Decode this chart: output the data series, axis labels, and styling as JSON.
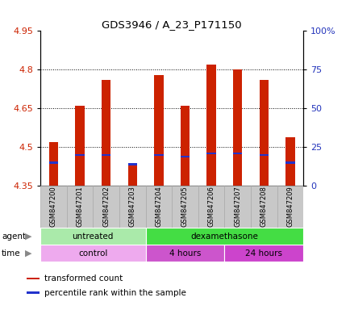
{
  "title": "GDS3946 / A_23_P171150",
  "samples": [
    "GSM847200",
    "GSM847201",
    "GSM847202",
    "GSM847203",
    "GSM847204",
    "GSM847205",
    "GSM847206",
    "GSM847207",
    "GSM847208",
    "GSM847209"
  ],
  "bar_values": [
    4.52,
    4.66,
    4.76,
    4.44,
    4.78,
    4.66,
    4.82,
    4.8,
    4.76,
    4.54
  ],
  "bar_bottom": 4.35,
  "percentile_values": [
    15,
    20,
    20,
    14,
    20,
    19,
    21,
    21,
    20,
    15
  ],
  "left_yticks": [
    4.35,
    4.5,
    4.65,
    4.8,
    4.95
  ],
  "right_yticks": [
    0,
    25,
    50,
    75,
    100
  ],
  "left_ylim": [
    4.35,
    4.95
  ],
  "right_ylim": [
    0,
    100
  ],
  "bar_color": "#cc2200",
  "percentile_color": "#2233cc",
  "bar_width": 0.35,
  "agent_groups": [
    {
      "label": "untreated",
      "start": 0,
      "end": 4,
      "color": "#aaeaaa"
    },
    {
      "label": "dexamethasone",
      "start": 4,
      "end": 10,
      "color": "#44dd44"
    }
  ],
  "time_groups": [
    {
      "label": "control",
      "start": 0,
      "end": 4,
      "color": "#eeaaee"
    },
    {
      "label": "4 hours",
      "start": 4,
      "end": 7,
      "color": "#cc55cc"
    },
    {
      "label": "24 hours",
      "start": 7,
      "end": 10,
      "color": "#cc44cc"
    }
  ],
  "legend_items": [
    {
      "label": "transformed count",
      "color": "#cc2200"
    },
    {
      "label": "percentile rank within the sample",
      "color": "#2233cc"
    }
  ],
  "left_axis_color": "#cc2200",
  "right_axis_color": "#2233bb",
  "tick_label_bg": "#cccccc"
}
